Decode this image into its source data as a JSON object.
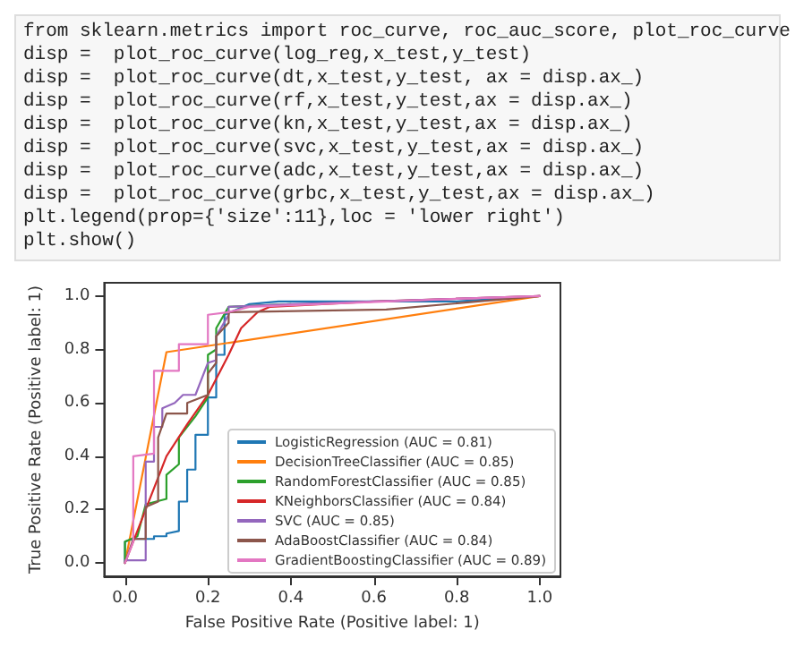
{
  "chart_data": {
    "type": "line",
    "xlabel": "False Positive Rate (Positive label: 1)",
    "ylabel": "True Positive Rate (Positive label: 1)",
    "annotations": [
      "from sklearn.metrics import roc_curve, roc_auc_score, plot_roc_curve",
      "disp =  plot_roc_curve(log_reg,x_test,y_test)",
      "disp =  plot_roc_curve(dt,x_test,y_test, ax = disp.ax_)",
      "disp =  plot_roc_curve(rf,x_test,y_test,ax = disp.ax_)",
      "disp =  plot_roc_curve(kn,x_test,y_test,ax = disp.ax_)",
      "disp =  plot_roc_curve(svc,x_test,y_test,ax = disp.ax_)",
      "disp =  plot_roc_curve(adc,x_test,y_test,ax = disp.ax_)",
      "disp =  plot_roc_curve(grbc,x_test,y_test,ax = disp.ax_)",
      "plt.legend(prop={'size':11},loc = 'lower right')",
      "plt.show()"
    ],
    "xlim": [
      -0.05,
      1.05
    ],
    "ylim": [
      -0.05,
      1.05
    ],
    "xticks": [
      {
        "value": 0,
        "label": "0.0"
      },
      0.2,
      0.4,
      0.6,
      0.8,
      {
        "value": 1,
        "label": "1.0"
      }
    ],
    "yticks": [
      {
        "value": 0,
        "label": "0.0"
      },
      0.2,
      0.4,
      0.6,
      0.8,
      {
        "value": 1,
        "label": "1.0"
      }
    ],
    "grid": false,
    "legend": "bottom right",
    "marker": "none",
    "line_style": "solid",
    "series": [
      {
        "name": "LogisticRegression (AUC = 0.81)",
        "color": "#1f77b4",
        "x": [
          0,
          0,
          0.02,
          0.07,
          0.07,
          0.1,
          0.1,
          0.13,
          0.13,
          0.15,
          0.15,
          0.17,
          0.17,
          0.2,
          0.2,
          0.22,
          0.22,
          0.24,
          0.24,
          0.3,
          0.37,
          0.8,
          1
        ],
        "values": [
          0,
          0.08,
          0.09,
          0.09,
          0.1,
          0.1,
          0.11,
          0.12,
          0.23,
          0.23,
          0.35,
          0.35,
          0.48,
          0.48,
          0.62,
          0.62,
          0.78,
          0.78,
          0.93,
          0.97,
          0.98,
          0.98,
          1
        ]
      },
      {
        "name": "DecisionTreeClassifier (AUC = 0.85)",
        "color": "#ff7f0e",
        "x": [
          0,
          0.1,
          1
        ],
        "values": [
          0,
          0.79,
          1
        ]
      },
      {
        "name": "RandomForestClassifier (AUC = 0.85)",
        "color": "#2ca02c",
        "x": [
          0,
          0,
          0.03,
          0.05,
          0.1,
          0.1,
          0.13,
          0.13,
          0.17,
          0.2,
          0.2,
          0.22,
          0.22,
          0.25,
          0.4
        ],
        "values": [
          0,
          0.08,
          0.1,
          0.22,
          0.24,
          0.33,
          0.37,
          0.47,
          0.55,
          0.62,
          0.78,
          0.8,
          0.88,
          0.96,
          0.97
        ]
      },
      {
        "name": "KNeighborsClassifier (AUC = 0.84)",
        "color": "#d62728",
        "x": [
          0,
          0.05,
          0.1,
          0.15,
          0.2,
          0.25,
          0.28,
          0.32,
          0.35,
          0.6,
          1
        ],
        "values": [
          0,
          0.2,
          0.4,
          0.52,
          0.63,
          0.78,
          0.88,
          0.94,
          0.96,
          0.98,
          1
        ]
      },
      {
        "name": "SVC (AUC = 0.85)",
        "color": "#9467bd",
        "x": [
          0,
          0,
          0.05,
          0.05,
          0.07,
          0.07,
          0.09,
          0.09,
          0.12,
          0.14,
          0.17,
          0.2,
          0.22,
          0.22,
          0.25,
          0.25,
          0.4,
          1
        ],
        "values": [
          0,
          0.01,
          0.01,
          0.38,
          0.38,
          0.51,
          0.51,
          0.58,
          0.6,
          0.63,
          0.63,
          0.75,
          0.76,
          0.85,
          0.93,
          0.96,
          0.97,
          1
        ]
      },
      {
        "name": "AdaBoostClassifier (AUC = 0.84)",
        "color": "#8c564b",
        "x": [
          0,
          0.02,
          0.05,
          0.05,
          0.08,
          0.08,
          0.1,
          0.15,
          0.15,
          0.2,
          0.2,
          0.22,
          0.22,
          0.25,
          0.25,
          0.63,
          1
        ],
        "values": [
          0,
          0.09,
          0.09,
          0.21,
          0.23,
          0.47,
          0.56,
          0.56,
          0.6,
          0.63,
          0.71,
          0.75,
          0.85,
          0.9,
          0.94,
          0.95,
          1
        ]
      },
      {
        "name": "GradientBoostingClassifier (AUC = 0.89)",
        "color": "#e377c2",
        "x": [
          0,
          0.02,
          0.02,
          0.07,
          0.07,
          0.13,
          0.13,
          0.2,
          0.2,
          0.25,
          0.3,
          0.8,
          1
        ],
        "values": [
          0,
          0.08,
          0.4,
          0.41,
          0.72,
          0.72,
          0.82,
          0.82,
          0.93,
          0.94,
          0.96,
          0.99,
          1
        ]
      }
    ]
  }
}
